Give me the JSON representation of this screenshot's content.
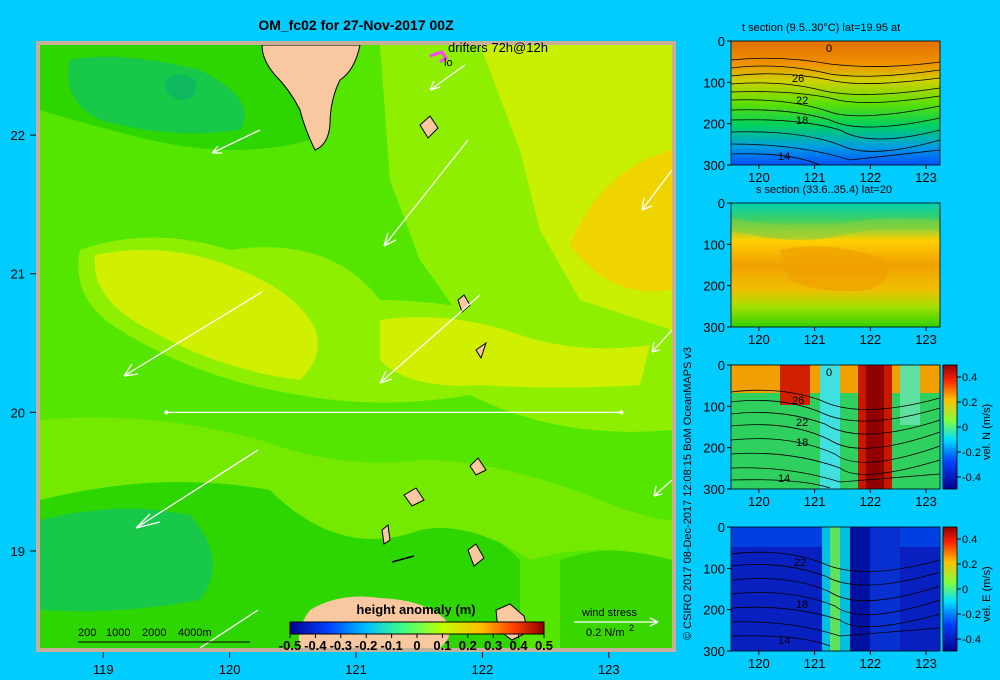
{
  "chart_data": [
    {
      "type": "heatmap",
      "title": "OM_fc02 for 27-Nov-2017 00Z",
      "x_ticks": [
        119,
        120,
        121,
        122,
        123
      ],
      "y_ticks": [
        22,
        21,
        20,
        19
      ],
      "xlim": [
        118.5,
        123.5
      ],
      "ylim": [
        18.3,
        22.65
      ],
      "drifters_label": "drifters 72h@12h",
      "drifter_marker": "lo",
      "colorbar": {
        "label": "height anomaly (m)",
        "ticks": [
          "-0.5",
          "-0.4",
          "-0.3",
          "-0.2",
          "-0.1",
          "0",
          "0.1",
          "0.2",
          "0.3",
          "0.4",
          "0.5"
        ]
      },
      "depth_legend": [
        "200",
        "1000",
        "2000",
        "4000m"
      ],
      "wind_legend": {
        "label": "wind stress",
        "value": "0.2 N/m",
        "exp": "2"
      },
      "section_line_lat": 20,
      "section_line_lon": [
        119.5,
        123.1
      ]
    },
    {
      "type": "heatmap",
      "title": "t section (9.5..30°C) lat=19.95 at",
      "x_ticks": [
        120,
        121,
        122,
        123
      ],
      "y_ticks": [
        0,
        100,
        200,
        300
      ],
      "contour_labels": [
        "0",
        "26",
        "22",
        "18",
        "14"
      ]
    },
    {
      "type": "heatmap",
      "title": "s section (33.6..35.4) lat=20",
      "x_ticks": [
        120,
        121,
        122,
        123
      ],
      "y_ticks": [
        0,
        100,
        200,
        300
      ]
    },
    {
      "type": "heatmap",
      "title": "",
      "x_ticks": [
        120,
        121,
        122,
        123
      ],
      "y_ticks": [
        0,
        100,
        200,
        300
      ],
      "contour_labels": [
        "0",
        "26",
        "22",
        "18",
        "14"
      ],
      "colorbar": {
        "label": "vel. N (m/s)",
        "ticks": [
          "0.4",
          "0.2",
          "0",
          "-0.2",
          "-0.4"
        ]
      }
    },
    {
      "type": "heatmap",
      "title": "",
      "x_ticks": [
        120,
        121,
        122,
        123
      ],
      "y_ticks": [
        0,
        100,
        200,
        300
      ],
      "contour_labels": [
        "22",
        "18",
        "14"
      ],
      "colorbar": {
        "label": "vel. E (m/s)",
        "ticks": [
          "0.4",
          "0.2",
          "0",
          "-0.2",
          "-0.4"
        ]
      }
    }
  ],
  "credit": "© CSIRO 2017   08-Dec-2017 12:08:15 BoM OceanMAPS v3"
}
